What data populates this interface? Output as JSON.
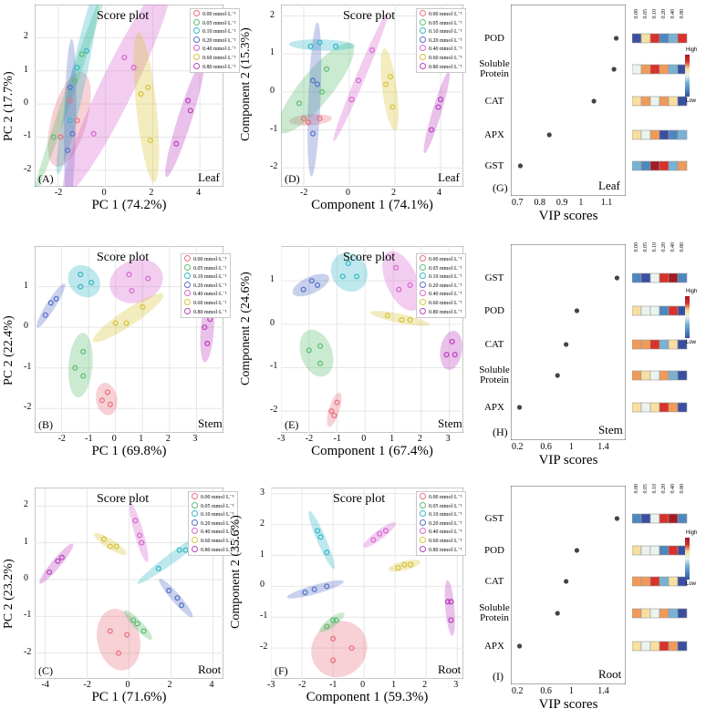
{
  "figure": {
    "legend_labels": [
      "0.00 mmol·L⁻¹",
      "0.05 mmol·L⁻¹",
      "0.10 mmol·L⁻¹",
      "0.20 mmol·L⁻¹",
      "0.40 mmol·L⁻¹",
      "0.60 mmol·L⁻¹",
      "0.80 mmol·L⁻¹"
    ],
    "colors": [
      "#e8727f",
      "#5fbf73",
      "#39b8c8",
      "#5a73c8",
      "#d768d2",
      "#d8c43c",
      "#bb42bf"
    ],
    "heat_colors": [
      "#3a4fa0",
      "#4d87be",
      "#77b2d3",
      "#eaf3ee",
      "#f7dfa1",
      "#f09a5a",
      "#d7322b",
      "#a21c26"
    ],
    "vip_conc_labels": [
      "0.00",
      "0.05",
      "0.10",
      "0.20",
      "0.40",
      "0.80"
    ],
    "colorbar_high": "High",
    "colorbar_low": "Low",
    "vip_xlabel": "VIP  scores"
  },
  "chart_data": [
    {
      "id": "A",
      "type": "scatter",
      "title": "Score plot",
      "panel_label": "(A)",
      "organ": "Leaf",
      "xlabel": "PC 1 (74.2%)",
      "ylabel": "PC 2 (17.7%)",
      "xlim": [
        -3,
        5
      ],
      "ylim": [
        -2.5,
        3
      ],
      "xticks": [
        -2,
        0,
        2,
        4
      ],
      "yticks": [
        -2,
        -1,
        0,
        1,
        2
      ],
      "groups": [
        {
          "points": [
            [
              -1.9,
              -1.0
            ],
            [
              -1.2,
              -0.5
            ],
            [
              -1.5,
              0.1
            ]
          ]
        },
        {
          "points": [
            [
              -2.2,
              -1.0
            ],
            [
              -1.3,
              0.7
            ],
            [
              -1.0,
              1.5
            ]
          ]
        },
        {
          "points": [
            [
              -1.5,
              -0.5
            ],
            [
              -1.2,
              1.1
            ],
            [
              -0.8,
              1.6
            ]
          ]
        },
        {
          "points": [
            [
              -1.5,
              0.5
            ],
            [
              -1.4,
              -0.9
            ],
            [
              -1.6,
              -1.4
            ]
          ]
        },
        {
          "points": [
            [
              -0.5,
              -0.9
            ],
            [
              1.2,
              1.1
            ],
            [
              0.8,
              1.4
            ]
          ]
        },
        {
          "points": [
            [
              1.5,
              0.3
            ],
            [
              1.8,
              0.5
            ],
            [
              1.9,
              -1.1
            ]
          ]
        },
        {
          "points": [
            [
              3.0,
              -1.2
            ],
            [
              3.5,
              0.1
            ],
            [
              3.6,
              -0.2
            ]
          ]
        }
      ]
    },
    {
      "id": "D",
      "type": "scatter",
      "title": "Score plot",
      "panel_label": "(D)",
      "organ": "Leaf",
      "xlabel": "Component 1 (74.1%)",
      "ylabel": "Component 2 (15.3%)",
      "xlim": [
        -3,
        5
      ],
      "ylim": [
        -2.5,
        2.3
      ],
      "xticks": [
        -2,
        0,
        2,
        4
      ],
      "yticks": [
        -2,
        -1,
        0,
        1,
        2
      ],
      "groups": [
        {
          "points": [
            [
              -2.0,
              -0.7
            ],
            [
              -1.8,
              -0.8
            ],
            [
              -1.3,
              -0.7
            ]
          ]
        },
        {
          "points": [
            [
              -2.2,
              -0.3
            ],
            [
              -1.2,
              0.0
            ],
            [
              -1.0,
              0.6
            ]
          ]
        },
        {
          "points": [
            [
              -1.7,
              1.2
            ],
            [
              -1.3,
              1.3
            ],
            [
              -0.6,
              1.2
            ]
          ]
        },
        {
          "points": [
            [
              -1.6,
              0.3
            ],
            [
              -1.4,
              0.2
            ],
            [
              -1.6,
              -1.1
            ]
          ]
        },
        {
          "points": [
            [
              0.1,
              -0.2
            ],
            [
              0.4,
              0.3
            ],
            [
              1.0,
              1.1
            ]
          ]
        },
        {
          "points": [
            [
              1.6,
              0.2
            ],
            [
              1.8,
              0.4
            ],
            [
              1.9,
              -0.4
            ]
          ]
        },
        {
          "points": [
            [
              3.6,
              -1.0
            ],
            [
              3.9,
              -0.4
            ],
            [
              4.0,
              -0.2
            ]
          ]
        }
      ]
    },
    {
      "id": "G",
      "type": "dot",
      "panel_label": "(G)",
      "organ": "Leaf",
      "xlabel": "VIP  scores",
      "xlim": [
        0.7,
        1.15
      ],
      "xticks": [
        0.7,
        0.8,
        0.9,
        1.0,
        1.1
      ],
      "variables": [
        "POD",
        "Soluble\nProtein",
        "CAT",
        "APX",
        "GST"
      ],
      "values": [
        1.14,
        1.13,
        1.04,
        0.84,
        0.71
      ],
      "heat": [
        [
          0,
          4,
          6,
          1,
          2,
          6
        ],
        [
          3,
          5,
          6,
          5,
          2,
          0
        ],
        [
          4,
          5,
          3,
          5,
          4,
          0
        ],
        [
          4,
          3,
          5,
          0,
          1,
          2
        ],
        [
          2,
          1,
          7,
          6,
          2,
          5
        ]
      ]
    },
    {
      "id": "B",
      "type": "scatter",
      "title": "Score plot",
      "panel_label": "(B)",
      "organ": "Stem",
      "xlabel": "PC 1 (69.8%)",
      "ylabel": "PC 2 (22.4%)",
      "xlim": [
        -3,
        4
      ],
      "ylim": [
        -2.6,
        2.0
      ],
      "xticks": [
        -2,
        -1,
        0,
        1,
        2,
        3
      ],
      "yticks": [
        -2,
        -1,
        0,
        1
      ],
      "groups": [
        {
          "points": [
            [
              -0.5,
              -1.8
            ],
            [
              -0.3,
              -1.6
            ],
            [
              -0.2,
              -1.9
            ]
          ]
        },
        {
          "points": [
            [
              -1.5,
              -1.0
            ],
            [
              -1.2,
              -0.6
            ],
            [
              -1.2,
              -1.2
            ]
          ]
        },
        {
          "points": [
            [
              -1.3,
              1.3
            ],
            [
              -0.9,
              1.1
            ],
            [
              -1.3,
              1.0
            ]
          ]
        },
        {
          "points": [
            [
              -2.6,
              0.3
            ],
            [
              -2.4,
              0.6
            ],
            [
              -2.2,
              0.7
            ]
          ]
        },
        {
          "points": [
            [
              0.5,
              1.3
            ],
            [
              1.2,
              1.2
            ],
            [
              0.6,
              0.9
            ]
          ]
        },
        {
          "points": [
            [
              0.0,
              0.1
            ],
            [
              0.4,
              0.1
            ],
            [
              1.0,
              0.5
            ]
          ]
        },
        {
          "points": [
            [
              3.3,
              0.0
            ],
            [
              3.5,
              0.2
            ],
            [
              3.4,
              -0.4
            ]
          ]
        }
      ]
    },
    {
      "id": "E",
      "type": "scatter",
      "title": "Score plot",
      "panel_label": "(E)",
      "organ": "Stem",
      "xlabel": "Component 1 (67.4%)",
      "ylabel": "Component 2 (24.6%)",
      "xlim": [
        -3,
        3.5
      ],
      "ylim": [
        -2.5,
        1.8
      ],
      "xticks": [
        -3,
        -2,
        -1,
        0,
        1,
        2,
        3
      ],
      "yticks": [
        -2,
        -1,
        0,
        1
      ],
      "groups": [
        {
          "points": [
            [
              -1.2,
              -2.0
            ],
            [
              -1.0,
              -1.8
            ],
            [
              -1.1,
              -2.1
            ]
          ]
        },
        {
          "points": [
            [
              -2.0,
              -0.6
            ],
            [
              -1.6,
              -0.5
            ],
            [
              -1.6,
              -0.9
            ]
          ]
        },
        {
          "points": [
            [
              -0.6,
              1.4
            ],
            [
              -0.3,
              1.1
            ],
            [
              -0.8,
              1.1
            ]
          ]
        },
        {
          "points": [
            [
              -2.2,
              0.8
            ],
            [
              -1.9,
              1.0
            ],
            [
              -1.7,
              0.9
            ]
          ]
        },
        {
          "points": [
            [
              1.2,
              0.8
            ],
            [
              1.6,
              0.9
            ],
            [
              1.1,
              1.3
            ]
          ]
        },
        {
          "points": [
            [
              0.8,
              0.2
            ],
            [
              1.3,
              0.1
            ],
            [
              1.6,
              0.1
            ]
          ]
        },
        {
          "points": [
            [
              2.9,
              -0.7
            ],
            [
              3.1,
              -0.4
            ],
            [
              3.2,
              -0.7
            ]
          ]
        }
      ]
    },
    {
      "id": "H",
      "type": "dot",
      "panel_label": "(H)",
      "organ": "Stem",
      "xlabel": "VIP  scores",
      "xlim": [
        0.2,
        1.6
      ],
      "xticks": [
        0.2,
        0.6,
        1.0,
        1.4
      ],
      "variables": [
        "GST",
        "POD",
        "CAT",
        "Soluble\nProtein",
        "APX"
      ],
      "values": [
        1.58,
        1.02,
        0.87,
        0.75,
        0.22
      ],
      "heat": [
        [
          1,
          0,
          3,
          6,
          7,
          1
        ],
        [
          4,
          3,
          3,
          1,
          6,
          0
        ],
        [
          5,
          5,
          6,
          2,
          4,
          0
        ],
        [
          5,
          4,
          3,
          5,
          2,
          0
        ],
        [
          4,
          3,
          4,
          6,
          5,
          0
        ]
      ]
    },
    {
      "id": "C",
      "type": "scatter",
      "title": "Score plot",
      "panel_label": "(C)",
      "organ": "Root",
      "xlabel": "PC 1 (71.6%)",
      "ylabel": "PC 2 (23.2%)",
      "xlim": [
        -4.5,
        4.5
      ],
      "ylim": [
        -2.7,
        2.5
      ],
      "xticks": [
        -4,
        -2,
        0,
        2,
        4
      ],
      "yticks": [
        -2,
        -1,
        0,
        1,
        2
      ],
      "groups": [
        {
          "points": [
            [
              -0.9,
              -1.4
            ],
            [
              -0.5,
              -2.0
            ],
            [
              -0.1,
              -1.5
            ]
          ]
        },
        {
          "points": [
            [
              0.2,
              -1.1
            ],
            [
              0.4,
              -1.2
            ],
            [
              0.7,
              -1.4
            ]
          ]
        },
        {
          "points": [
            [
              1.4,
              0.3
            ],
            [
              2.4,
              0.8
            ],
            [
              2.7,
              0.8
            ]
          ]
        },
        {
          "points": [
            [
              1.9,
              -0.3
            ],
            [
              2.3,
              -0.5
            ],
            [
              2.5,
              -0.7
            ]
          ]
        },
        {
          "points": [
            [
              0.3,
              1.6
            ],
            [
              0.5,
              1.2
            ],
            [
              0.6,
              1.0
            ]
          ]
        },
        {
          "points": [
            [
              -1.2,
              1.1
            ],
            [
              -0.9,
              0.9
            ],
            [
              -0.6,
              0.9
            ]
          ]
        },
        {
          "points": [
            [
              -3.8,
              0.2
            ],
            [
              -3.4,
              0.5
            ],
            [
              -3.2,
              0.6
            ]
          ]
        }
      ]
    },
    {
      "id": "F",
      "type": "scatter",
      "title": "Score plot",
      "panel_label": "(F)",
      "organ": "Root",
      "xlabel": "Component 1 (59.3%)",
      "ylabel": "Component 2 (35.6%)",
      "xlim": [
        -3,
        3.2
      ],
      "ylim": [
        -3.0,
        3.2
      ],
      "xticks": [
        -3,
        -2,
        -1,
        0,
        1,
        2,
        3
      ],
      "yticks": [
        -2,
        -1,
        0,
        1,
        2,
        3
      ],
      "groups": [
        {
          "points": [
            [
              -1.0,
              -1.7
            ],
            [
              -1.0,
              -2.4
            ],
            [
              -0.4,
              -2.0
            ]
          ]
        },
        {
          "points": [
            [
              -1.0,
              -1.1
            ],
            [
              -0.9,
              -1.1
            ],
            [
              -1.2,
              -1.3
            ]
          ]
        },
        {
          "points": [
            [
              -1.5,
              1.8
            ],
            [
              -1.4,
              1.6
            ],
            [
              -1.2,
              1.1
            ]
          ]
        },
        {
          "points": [
            [
              -1.9,
              -0.2
            ],
            [
              -1.6,
              -0.1
            ],
            [
              -1.2,
              0.0
            ]
          ]
        },
        {
          "points": [
            [
              0.3,
              1.5
            ],
            [
              0.5,
              1.7
            ],
            [
              0.7,
              1.8
            ]
          ]
        },
        {
          "points": [
            [
              1.1,
              0.6
            ],
            [
              1.3,
              0.7
            ],
            [
              1.5,
              0.7
            ]
          ]
        },
        {
          "points": [
            [
              2.7,
              -0.5
            ],
            [
              2.8,
              -0.5
            ],
            [
              2.8,
              -1.1
            ]
          ]
        }
      ]
    },
    {
      "id": "I",
      "type": "dot",
      "panel_label": "(I)",
      "organ": "Root",
      "xlabel": "VIP  scores",
      "xlim": [
        0.2,
        1.6
      ],
      "xticks": [
        0.2,
        0.6,
        1.0,
        1.4
      ],
      "variables": [
        "GST",
        "POD",
        "CAT",
        "Soluble\nProtein",
        "APX"
      ],
      "values": [
        1.58,
        1.02,
        0.87,
        0.75,
        0.22
      ],
      "heat": [
        [
          1,
          0,
          3,
          6,
          7,
          1
        ],
        [
          4,
          3,
          3,
          1,
          6,
          0
        ],
        [
          5,
          5,
          6,
          2,
          4,
          0
        ],
        [
          5,
          4,
          3,
          5,
          2,
          0
        ],
        [
          4,
          3,
          4,
          6,
          5,
          0
        ]
      ]
    }
  ]
}
